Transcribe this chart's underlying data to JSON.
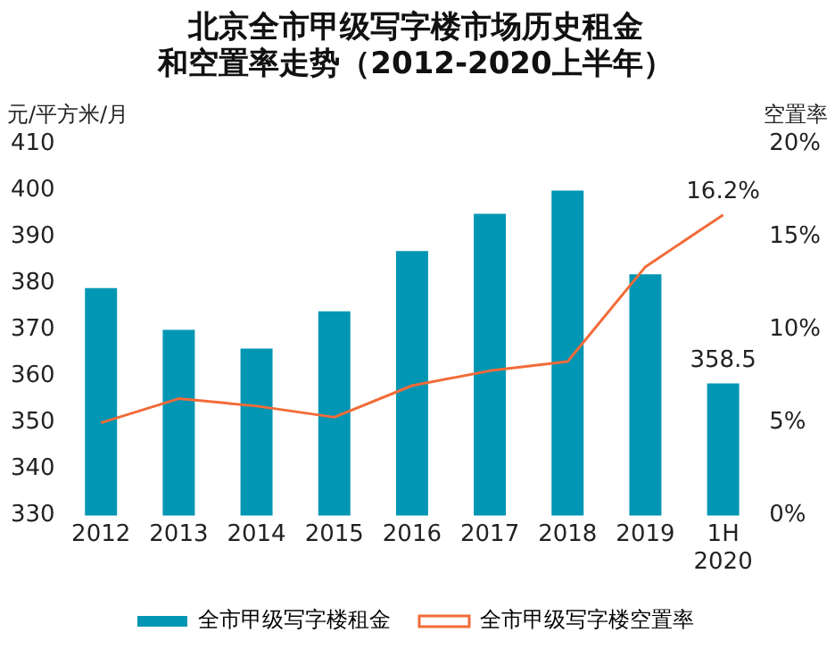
{
  "chart_data": {
    "type": "bar",
    "title": [
      "北京全市甲级写字楼市场历史租金",
      "和空置率走势（2012-2020上半年）"
    ],
    "ylabel": "元/平方米/月",
    "y2label": "空置率",
    "categories": [
      "2012",
      "2013",
      "2014",
      "2015",
      "2016",
      "2017",
      "2018",
      "2019",
      "1H\n2020"
    ],
    "series": [
      {
        "name": "全市甲级写字楼租金",
        "color": "#0096b4",
        "values": [
          379,
          370,
          366,
          374,
          387,
          395,
          400,
          382,
          358.5
        ],
        "value_labels": [
          null,
          null,
          null,
          null,
          null,
          null,
          null,
          null,
          "358.5"
        ]
      },
      {
        "name": "全市甲级写字楼空置率",
        "type": "line",
        "axis": "y2",
        "color": "#f26b38",
        "values": [
          5.0,
          6.3,
          5.9,
          5.3,
          7.0,
          7.8,
          8.3,
          13.4,
          16.2
        ],
        "value_labels": [
          null,
          null,
          null,
          null,
          null,
          null,
          null,
          null,
          "16.2%"
        ]
      }
    ],
    "ylim": [
      330,
      410
    ],
    "yticks": [
      330,
      340,
      350,
      360,
      370,
      380,
      390,
      400,
      410
    ],
    "y2lim": [
      0,
      20
    ],
    "y2ticks": [
      {
        "value": 0,
        "label": "0%"
      },
      {
        "value": 5,
        "label": "5%"
      },
      {
        "value": 10,
        "label": "10%"
      },
      {
        "value": 15,
        "label": "15%"
      },
      {
        "value": 20,
        "label": "20%"
      }
    ],
    "legend": "bottom",
    "grid": false,
    "marker": "none",
    "line_style": "solid"
  }
}
